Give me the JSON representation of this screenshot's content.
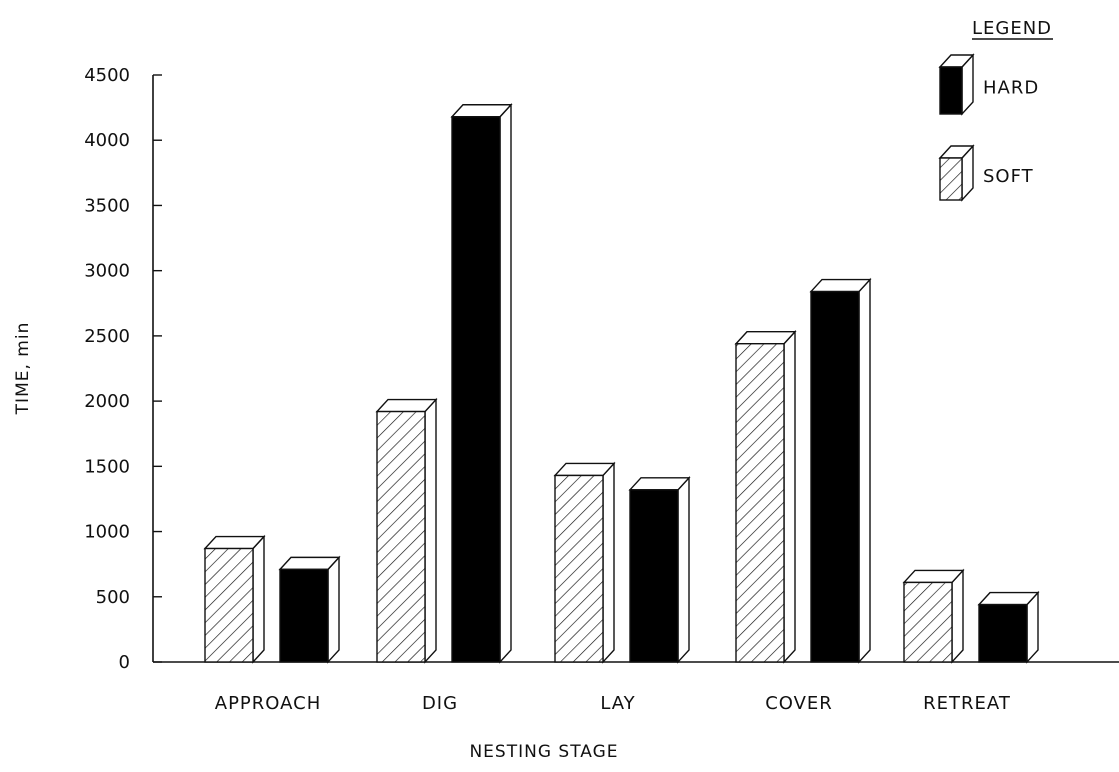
{
  "chart_data": {
    "type": "bar",
    "categories": [
      "APPROACH",
      "DIG",
      "LAY",
      "COVER",
      "RETREAT"
    ],
    "series": [
      {
        "name": "SOFT",
        "values": [
          870,
          1920,
          1430,
          2440,
          610
        ],
        "pattern": "hatched"
      },
      {
        "name": "HARD",
        "values": [
          710,
          4180,
          1320,
          2840,
          440
        ],
        "pattern": "solid"
      }
    ],
    "ylabel": "TIME, min",
    "xlabel": "NESTING STAGE",
    "ylim": [
      0,
      4500
    ],
    "yticks": [
      0,
      500,
      1000,
      1500,
      2000,
      2500,
      3000,
      3500,
      4000,
      4500
    ],
    "legend": {
      "title": "LEGEND",
      "placement": "top-right",
      "entries": [
        {
          "label": "HARD",
          "pattern": "solid"
        },
        {
          "label": "SOFT",
          "pattern": "hatched"
        }
      ]
    },
    "grid": false,
    "colors": {
      "hard": "#000000",
      "soft_hatch": "#000000",
      "background": "#ffffff"
    }
  }
}
